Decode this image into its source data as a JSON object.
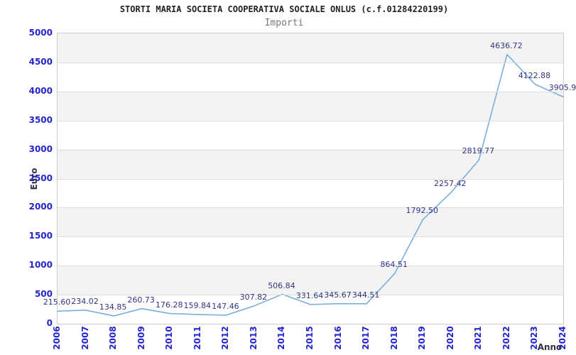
{
  "chart_data": {
    "type": "line",
    "title": "STORTI MARIA SOCIETA COOPERATIVA SOCIALE ONLUS (c.f.01284220199)",
    "subtitle": "Importi",
    "xlabel": "Anno",
    "ylabel": "Euro",
    "x": [
      2006,
      2007,
      2008,
      2009,
      2010,
      2011,
      2012,
      2013,
      2014,
      2015,
      2016,
      2017,
      2018,
      2019,
      2020,
      2021,
      2022,
      2023,
      2024
    ],
    "values": [
      215.6,
      234.02,
      134.85,
      260.73,
      176.28,
      159.84,
      147.46,
      307.82,
      506.84,
      331.64,
      345.67,
      344.51,
      864.51,
      1792.5,
      2257.42,
      2819.77,
      4636.72,
      4122.88,
      3905.9
    ],
    "point_labels": [
      "215.60",
      "234.02",
      "134.85",
      "260.73",
      "176.28",
      "159.84",
      "147.46",
      "307.82",
      "506.84",
      "331.64",
      "345.67",
      "344.51",
      "864.51",
      "1792.50",
      "2257.42",
      "2819.77",
      "4636.72",
      "4122.88",
      "3905.9"
    ],
    "ylim": [
      0,
      5000
    ],
    "yticks": [
      0,
      500,
      1000,
      1500,
      2000,
      2500,
      3000,
      3500,
      4000,
      4500,
      5000
    ],
    "legend": "none",
    "grid": "horizontal gridlines every 500 with alternating shaded bands",
    "colors": {
      "line": "#7aaede",
      "tick_label": "#2424cc",
      "point_label": "#333388",
      "band": "#f3f3f3",
      "gridline": "#dddddd",
      "plot_border": "#cccccc",
      "title": "#222222",
      "subtitle": "#777777",
      "axis_title": "#333344",
      "background": "#ffffff"
    }
  }
}
